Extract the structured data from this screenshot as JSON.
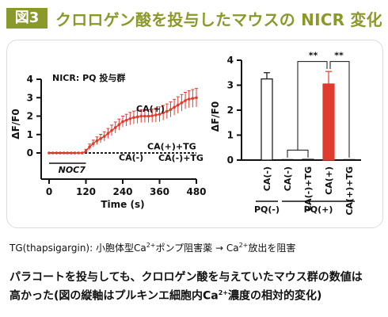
{
  "header": {
    "badge": "図3",
    "title": "クロロゲン酸を投与したマウスの NICR 変化"
  },
  "note": {
    "prefix": "TG(thapsigargin): 小胞体型Ca",
    "sup1": "2+",
    "middle": "ポンプ阻害薬 → Ca",
    "sup2": "2+",
    "suffix": "放出を阻害"
  },
  "caption": {
    "line1": "パラコートを投与しても、クロロゲン酸を与えていたマウス群の数値は",
    "line2a": "高かった(図の縦軸はプルキンエ細胞内Ca",
    "sup": "2+",
    "line2b": "濃度の相対的変化)"
  },
  "colors": {
    "accent": "#8a9a2a",
    "red": "#e03b2f",
    "dark": "#111111"
  },
  "chart_data": [
    {
      "type": "line",
      "title": "NICR: PQ 投与群",
      "xlabel": "Time (s)",
      "ylabel": "ΔF/F0",
      "xlim": [
        0,
        480
      ],
      "ylim": [
        0,
        4
      ],
      "xticks": [
        0,
        120,
        240,
        360,
        480
      ],
      "yticks": [
        0,
        1,
        2,
        3,
        4
      ],
      "stimulus_label": "NOC7",
      "stimulus_range": [
        0,
        120
      ],
      "series": [
        {
          "name": "CA(+)",
          "x": [
            0,
            60,
            110,
            120,
            130,
            150,
            180,
            210,
            240,
            270,
            300,
            330,
            360,
            390,
            420,
            450,
            480
          ],
          "y": [
            0,
            0,
            0,
            0.1,
            0.3,
            0.6,
            0.9,
            1.3,
            1.7,
            1.9,
            2.0,
            2.0,
            2.1,
            2.3,
            2.6,
            2.9,
            3.0
          ],
          "err": [
            0.05,
            0.05,
            0.05,
            0.1,
            0.15,
            0.2,
            0.25,
            0.3,
            0.3,
            0.35,
            0.35,
            0.35,
            0.4,
            0.4,
            0.45,
            0.45,
            0.5
          ]
        },
        {
          "name": "CA(+)+TG",
          "x": [
            0,
            120,
            240,
            360,
            480
          ],
          "y": [
            0,
            0,
            0,
            0,
            0
          ]
        },
        {
          "name": "CA(-)",
          "x": [
            0,
            120,
            240,
            360,
            480
          ],
          "y": [
            0,
            0,
            0,
            0,
            0
          ]
        },
        {
          "name": "CA(-)+TG",
          "x": [
            0,
            120,
            240,
            360,
            480
          ],
          "y": [
            0,
            0,
            0,
            0,
            0
          ]
        }
      ]
    },
    {
      "type": "bar",
      "ylabel": "ΔF/F0",
      "ylim": [
        0,
        4
      ],
      "yticks": [
        0,
        1,
        2,
        3,
        4
      ],
      "categories": [
        "CA(-)",
        "CA(-)",
        "CA(-)+TG",
        "CA(+)",
        "CA(+)+TG"
      ],
      "values": [
        3.25,
        0.02,
        0.03,
        3.05,
        0.02
      ],
      "errors": [
        0.25,
        0.02,
        0.02,
        0.5,
        0.02
      ],
      "bar_colors": [
        "#ffffff",
        "#ffffff",
        "#ffffff",
        "#e03b2f",
        "#ffffff"
      ],
      "groups": [
        {
          "label": "PQ(-)",
          "members": [
            0
          ]
        },
        {
          "label": "PQ(+)",
          "members": [
            1,
            2,
            3,
            4
          ]
        }
      ],
      "significance": [
        "**",
        "**"
      ]
    }
  ]
}
